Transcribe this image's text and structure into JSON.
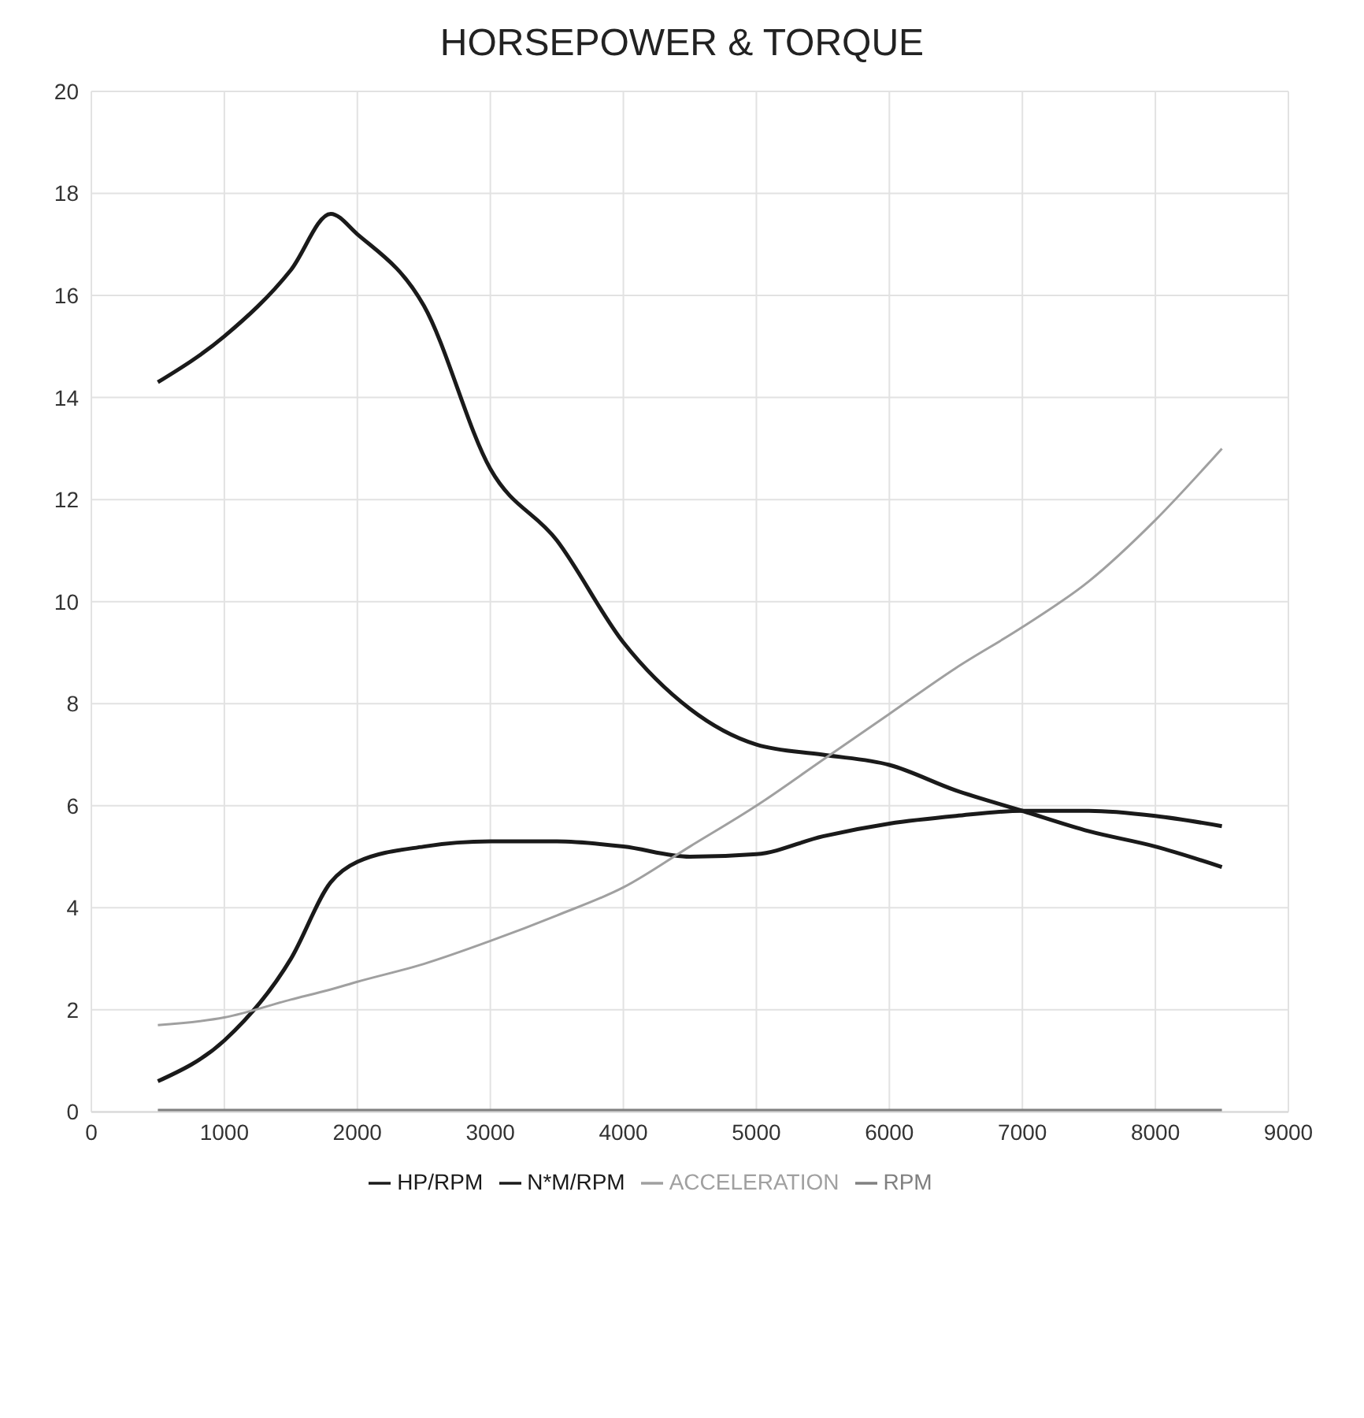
{
  "chart_data": {
    "type": "line",
    "title": "HORSEPOWER & TORQUE",
    "x": [
      500,
      1000,
      1500,
      1800,
      2000,
      2500,
      3000,
      3500,
      4000,
      4500,
      5000,
      5500,
      6000,
      6500,
      7000,
      7500,
      8000,
      8500
    ],
    "series": [
      {
        "name": "HP/RPM",
        "color": "#1a1a1a",
        "values": [
          0.6,
          1.4,
          3.0,
          4.5,
          4.9,
          5.2,
          5.3,
          5.3,
          5.2,
          5.0,
          5.05,
          5.4,
          5.65,
          5.8,
          5.9,
          5.9,
          5.8,
          5.6
        ]
      },
      {
        "name": "N*M/RPM",
        "color": "#1a1a1a",
        "values": [
          14.3,
          15.2,
          16.5,
          17.6,
          17.2,
          15.8,
          12.6,
          11.2,
          9.2,
          7.9,
          7.2,
          7.0,
          6.8,
          6.3,
          5.9,
          5.5,
          5.2,
          4.8
        ]
      },
      {
        "name": "ACCELERATION",
        "color": "#a0a0a0",
        "values": [
          1.7,
          1.85,
          2.2,
          2.4,
          2.55,
          2.9,
          3.35,
          3.85,
          4.4,
          5.2,
          6.0,
          6.9,
          7.8,
          8.7,
          9.5,
          10.4,
          11.6,
          13.0
        ]
      },
      {
        "name": "RPM",
        "color": "#808080",
        "values": [
          0,
          0,
          0,
          0,
          0,
          0,
          0,
          0,
          0,
          0,
          0,
          0,
          0,
          0,
          0,
          0,
          0,
          0
        ]
      }
    ],
    "xlim": [
      0,
      9000
    ],
    "xticks": [
      0,
      1000,
      2000,
      3000,
      4000,
      5000,
      6000,
      7000,
      8000,
      9000
    ],
    "ylim": [
      0,
      20
    ],
    "yticks": [
      0,
      2,
      4,
      6,
      8,
      10,
      12,
      14,
      16,
      18,
      20
    ],
    "grid": true,
    "legend": "bottom",
    "marker": "none",
    "line_style": "solid"
  }
}
